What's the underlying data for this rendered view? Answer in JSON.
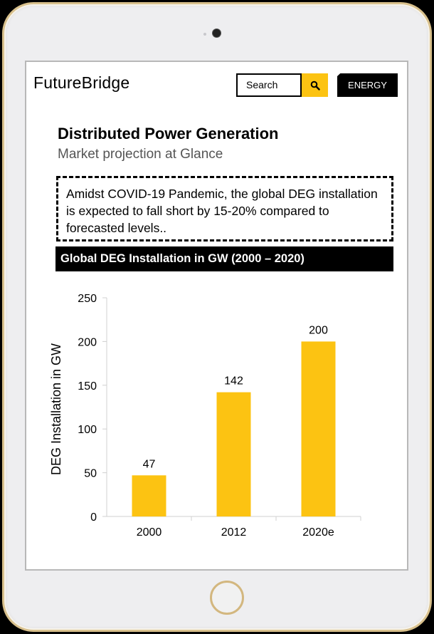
{
  "header": {
    "brand": "FutureBridge",
    "search_label": "Search",
    "category_tag": "ENERGY"
  },
  "content": {
    "title": "Distributed Power Generation",
    "subtitle": "Market projection at Glance",
    "callout": "Amidst COVID-19 Pandemic, the global DEG installation is expected to fall short by 15-20% compared to forecasted levels.."
  },
  "colors": {
    "accent": "#FCC312",
    "header_bg": "#000000"
  },
  "icons": {
    "search": "search-icon"
  },
  "chart_data": {
    "type": "bar",
    "title": "Global DEG Installation in GW (2000 – 2020)",
    "categories": [
      "2000",
      "2012",
      "2020e"
    ],
    "values": [
      47,
      142,
      200
    ],
    "xlabel": "",
    "ylabel": "DEG Installation in GW",
    "ylim": [
      0,
      250
    ],
    "yticks": [
      0,
      50,
      100,
      150,
      200,
      250
    ],
    "data_labels": true,
    "grid": false,
    "color": "#FCC312"
  }
}
